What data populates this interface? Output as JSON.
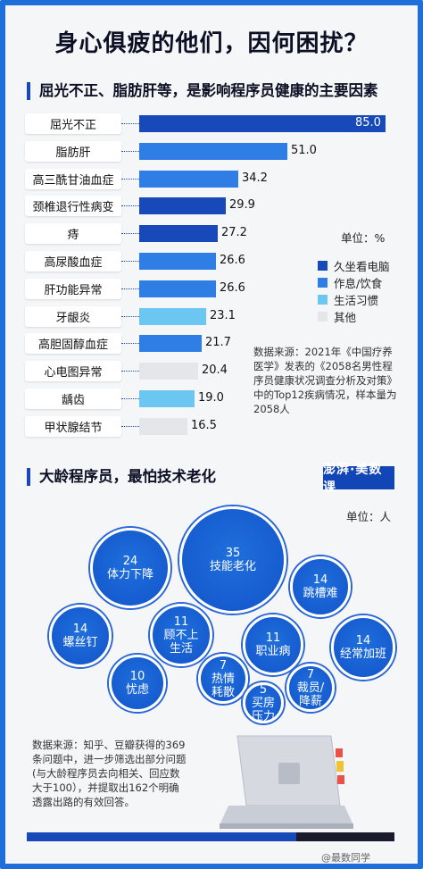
{
  "title": "身心俱疲的他们，因何困扰？",
  "section1_title": "屈光不正、脂肪肝等，是影响程序员健康的主要因素",
  "unit1": "单位：%",
  "legend": [
    {
      "label": "久坐看电脑",
      "color": "#1849b8"
    },
    {
      "label": "作息/饮食",
      "color": "#2f7ee6"
    },
    {
      "label": "生活习惯",
      "color": "#6cc6f2"
    },
    {
      "label": "其他",
      "color": "#e4e6ea"
    }
  ],
  "source1": {
    "lines": [
      "数据来源：2021年《中国疗养",
      "医学》发表的《2058名男性程",
      "序员健康状况调查分析及对策》",
      "中的Top12疾病情况，样本量为",
      "2058人"
    ]
  },
  "chart_data": [
    {
      "type": "bar",
      "orientation": "horizontal",
      "title": "屈光不正、脂肪肝等，是影响程序员健康的主要因素",
      "unit": "单位：%",
      "categories": [
        "屈光不正",
        "脂肪肝",
        "高三酰甘油血症",
        "颈椎退行性病变",
        "痔",
        "高尿酸血症",
        "肝功能异常",
        "牙龈炎",
        "高胆固醇血症",
        "心电图异常",
        "龋齿",
        "甲状腺结节"
      ],
      "values": [
        85.0,
        51.0,
        34.2,
        29.9,
        27.2,
        26.6,
        26.6,
        23.1,
        21.7,
        20.4,
        19.0,
        16.5
      ],
      "value_labels": [
        "85.0",
        "51.0",
        "34.2",
        "29.9",
        "27.2",
        "26.6",
        "26.6",
        "23.1",
        "21.7",
        "20.4",
        "19.0",
        "16.5"
      ],
      "groups": [
        "久坐看电脑",
        "作息/饮食",
        "作息/饮食",
        "久坐看电脑",
        "久坐看电脑",
        "作息/饮食",
        "作息/饮食",
        "生活习惯",
        "作息/饮食",
        "其他",
        "生活习惯",
        "其他"
      ],
      "xlim": [
        0,
        85
      ]
    },
    {
      "type": "bubble",
      "title": "大龄程序员，最怕技术老化",
      "unit": "单位：人",
      "items": [
        {
          "label": "体力下降",
          "value": 24
        },
        {
          "label": "技能老化",
          "value": 35
        },
        {
          "label": "跳槽难",
          "value": 14
        },
        {
          "label": "螺丝钉",
          "value": 14
        },
        {
          "label": "顾不上生活",
          "value": 11
        },
        {
          "label": "职业病",
          "value": 11
        },
        {
          "label": "经常加班",
          "value": 14
        },
        {
          "label": "忧虑",
          "value": 10
        },
        {
          "label": "热情耗散",
          "value": 7
        },
        {
          "label": "买房压力",
          "value": 5
        },
        {
          "label": "裁员/降薪",
          "value": 7
        }
      ]
    }
  ],
  "section2_title": "大龄程序员，最怕技术老化",
  "unit2": "单位：人",
  "logo_text": "澎湃·美数课",
  "source2": {
    "lines": [
      "数据来源：知乎、豆瓣获得的369",
      "条问题中，进一步筛选出部分问题",
      "(与大龄程序员去向相关、回应数",
      "大于100），并提取出162个明确",
      "透露出路的有效回答。"
    ]
  },
  "watermark": "@最数同学"
}
